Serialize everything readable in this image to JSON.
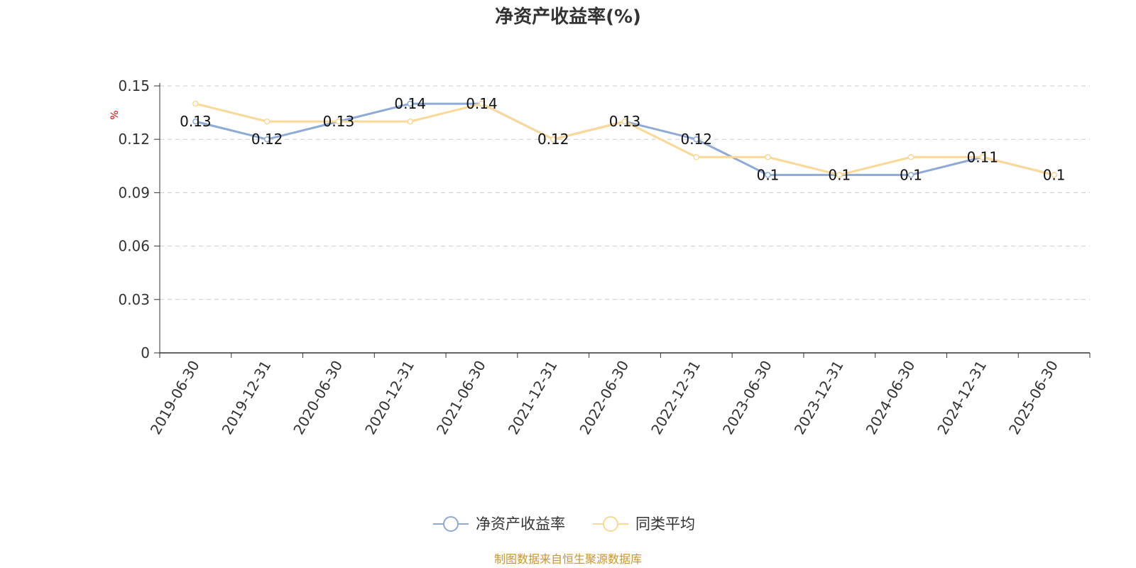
{
  "chart_data": {
    "type": "line",
    "title": "净资产收益率(%)",
    "unit_label": "%",
    "categories": [
      "2019-06-30",
      "2019-12-31",
      "2020-06-30",
      "2020-12-31",
      "2021-06-30",
      "2021-12-31",
      "2022-06-30",
      "2022-12-31",
      "2023-06-30",
      "2023-12-31",
      "2024-06-30",
      "2024-12-31",
      "2025-06-30"
    ],
    "ylim": [
      0,
      0.15
    ],
    "yticks": [
      "0",
      "0.03",
      "0.06",
      "0.09",
      "0.12",
      "0.15"
    ],
    "grid": true,
    "legend_position": "bottom-center",
    "series": [
      {
        "name": "净资产收益率",
        "color": "#8eaad6",
        "values": [
          0.13,
          0.12,
          0.13,
          0.14,
          0.14,
          0.12,
          0.13,
          0.12,
          0.1,
          0.1,
          0.1,
          0.11,
          0.1
        ],
        "labels": [
          "0.13",
          "0.12",
          "0.13",
          "0.14",
          "0.14",
          "0.12",
          "0.13",
          "0.12",
          "0.1",
          "0.1",
          "0.1",
          "0.11",
          "0.1"
        ]
      },
      {
        "name": "同类平均",
        "color": "#fad896",
        "values": [
          0.14,
          0.13,
          0.13,
          0.13,
          0.14,
          0.12,
          0.13,
          0.11,
          0.11,
          0.1,
          0.11,
          0.11,
          0.1
        ]
      }
    ],
    "source": "制图数据来自恒生聚源数据库"
  }
}
